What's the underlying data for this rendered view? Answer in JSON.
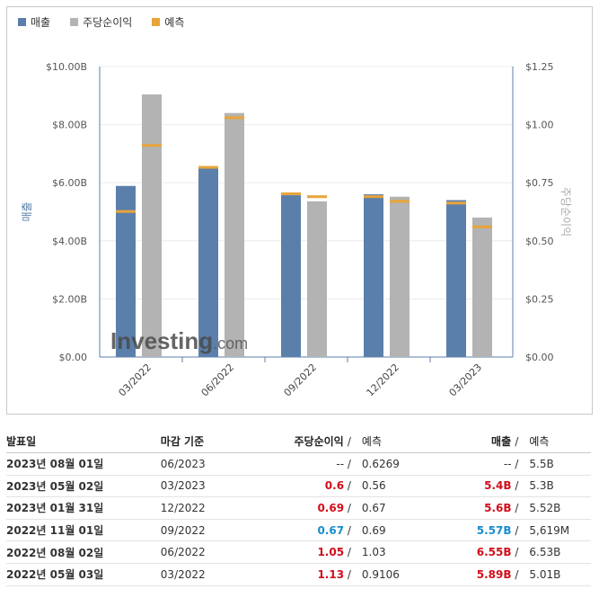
{
  "legend": [
    {
      "label": "매출",
      "color": "#5b7fab"
    },
    {
      "label": "주당순이익",
      "color": "#b3b3b3"
    },
    {
      "label": "예측",
      "color": "#e8a53a"
    }
  ],
  "watermark": {
    "brand": "Investing",
    "suffix": ".com"
  },
  "chart_data": {
    "type": "bar",
    "categories": [
      "03/2022",
      "06/2022",
      "09/2022",
      "12/2022",
      "03/2023"
    ],
    "y_left": {
      "label": "매출",
      "ticks": [
        "$0.00",
        "$2.00B",
        "$4.00B",
        "$6.00B",
        "$8.00B",
        "$10.00B"
      ],
      "range": [
        0,
        10
      ]
    },
    "y_right": {
      "label": "주당순이익",
      "ticks": [
        "$0.00",
        "$0.25",
        "$0.50",
        "$0.75",
        "$1.00",
        "$1.25"
      ],
      "range": [
        0,
        1.25
      ]
    },
    "series": [
      {
        "name": "매출",
        "axis": "left",
        "color": "#5b7fab",
        "values": [
          5.89,
          6.55,
          5.57,
          5.6,
          5.4
        ],
        "forecast": [
          5.01,
          6.53,
          5.619,
          5.52,
          5.3
        ]
      },
      {
        "name": "주당순이익",
        "axis": "right",
        "color": "#b3b3b3",
        "values": [
          1.13,
          1.05,
          0.67,
          0.69,
          0.6
        ],
        "forecast": [
          0.9106,
          1.03,
          0.69,
          0.67,
          0.56
        ]
      }
    ],
    "forecast_color": "#e8a53a"
  },
  "table": {
    "headers": {
      "date": "발표일",
      "period": "마감 기준",
      "eps": "주당순이익",
      "eps_forecast": "예측",
      "revenue": "매출",
      "revenue_forecast": "예측",
      "slash": "/"
    },
    "rows": [
      {
        "date": "2023년 08월 01일",
        "period": "06/2023",
        "eps": "--",
        "eps_class": "plain",
        "eps_forecast": "0.6269",
        "revenue": "--",
        "rev_class": "plain",
        "revenue_forecast": "5.5B"
      },
      {
        "date": "2023년 05월 02일",
        "period": "03/2023",
        "eps": "0.6",
        "eps_class": "red",
        "eps_forecast": "0.56",
        "revenue": "5.4B",
        "rev_class": "red",
        "revenue_forecast": "5.3B"
      },
      {
        "date": "2023년 01월 31일",
        "period": "12/2022",
        "eps": "0.69",
        "eps_class": "red",
        "eps_forecast": "0.67",
        "revenue": "5.6B",
        "rev_class": "red",
        "revenue_forecast": "5.52B"
      },
      {
        "date": "2022년 11월 01일",
        "period": "09/2022",
        "eps": "0.67",
        "eps_class": "blue",
        "eps_forecast": "0.69",
        "revenue": "5.57B",
        "rev_class": "blue",
        "revenue_forecast": "5,619M"
      },
      {
        "date": "2022년 08월 02일",
        "period": "06/2022",
        "eps": "1.05",
        "eps_class": "red",
        "eps_forecast": "1.03",
        "revenue": "6.55B",
        "rev_class": "red",
        "revenue_forecast": "6.53B"
      },
      {
        "date": "2022년 05월 03일",
        "period": "03/2022",
        "eps": "1.13",
        "eps_class": "red",
        "eps_forecast": "0.9106",
        "revenue": "5.89B",
        "rev_class": "red",
        "revenue_forecast": "5.01B"
      }
    ]
  }
}
